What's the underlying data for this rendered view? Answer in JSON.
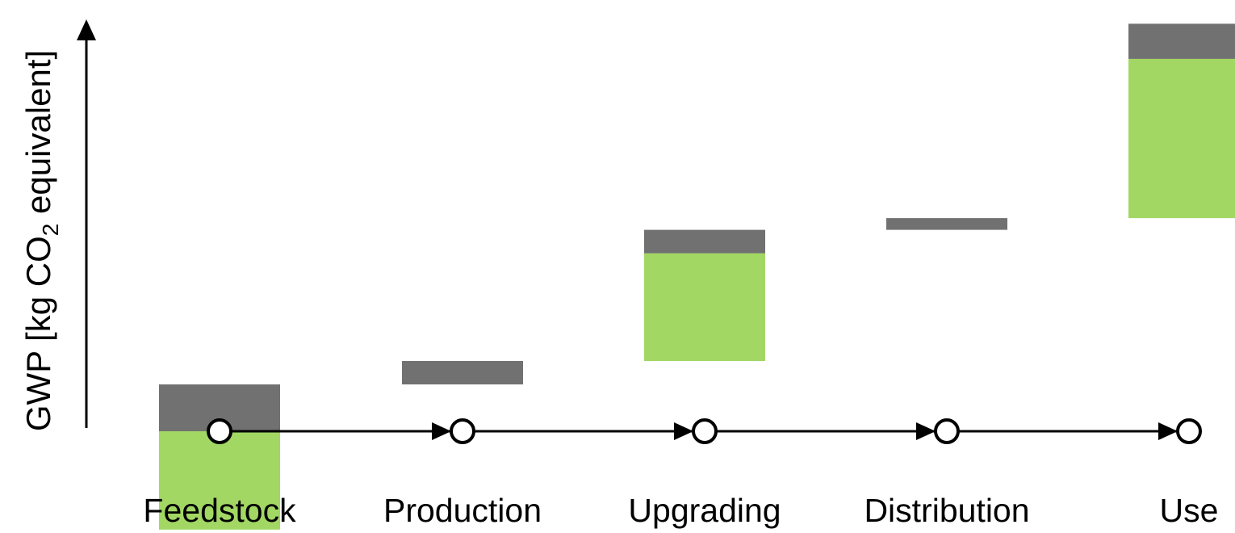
{
  "chart_data": {
    "type": "bar",
    "subtype": "waterfall",
    "ylabel": {
      "prefix": "GWP [kg CO",
      "subscript": "2",
      "suffix": " equivalent]"
    },
    "categories": [
      "Feedstock",
      "Production",
      "Upgrading",
      "Distribution",
      "Use"
    ],
    "series": [
      {
        "color": "#a2d763",
        "values": [
          -2.1,
          0,
          2.3,
          0,
          3.4
        ]
      },
      {
        "color": "#717171",
        "values": [
          1.0,
          0.5,
          0.5,
          0.25,
          0.75
        ]
      }
    ],
    "bars": [
      {
        "category": "Feedstock",
        "green_bottom": -2.1,
        "green_top": 0,
        "gray_bottom": 0,
        "gray_top": 1.0
      },
      {
        "category": "Production",
        "green_bottom": null,
        "green_top": null,
        "gray_bottom": 1.0,
        "gray_top": 1.5
      },
      {
        "category": "Upgrading",
        "green_bottom": 1.5,
        "green_top": 3.8,
        "gray_bottom": 3.8,
        "gray_top": 4.3
      },
      {
        "category": "Distribution",
        "green_bottom": null,
        "green_top": null,
        "gray_bottom": 4.3,
        "gray_top": 4.55
      },
      {
        "category": "Use",
        "green_bottom": 4.55,
        "green_top": 7.95,
        "gray_bottom": 7.95,
        "gray_top": 8.7
      }
    ],
    "ylim": [
      -2.1,
      8.7
    ],
    "grid": false,
    "legend": "none"
  },
  "colors": {
    "green": "#a2d763",
    "gray": "#717171",
    "axis": "#000000"
  }
}
